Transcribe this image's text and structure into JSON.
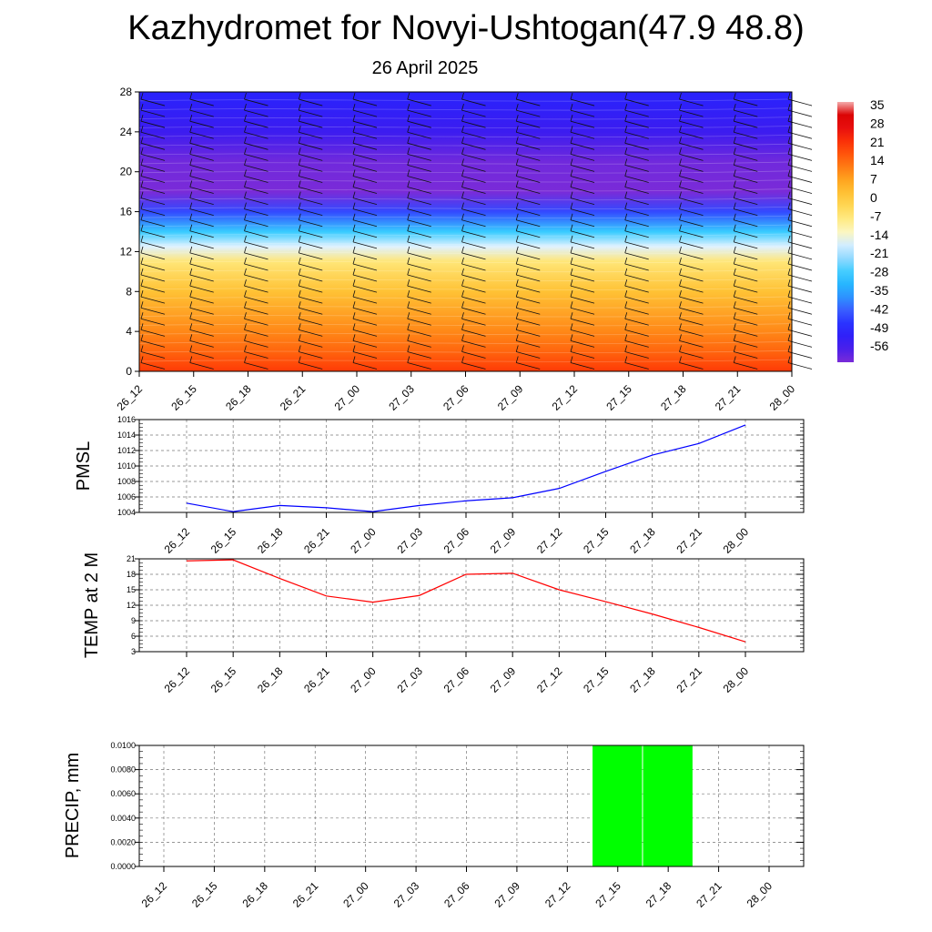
{
  "title": "Kazhydromet for Novyi-Ushtogan(47.9 48.8)",
  "subtitle": "26 April 2025",
  "time_labels": [
    "26_12",
    "26_15",
    "26_18",
    "26_21",
    "27_00",
    "27_03",
    "27_06",
    "27_09",
    "27_12",
    "27_15",
    "27_18",
    "27_21",
    "28_00"
  ],
  "colorbar_labels": [
    "35",
    "28",
    "21",
    "14",
    "7",
    "0",
    "-7",
    "-14",
    "-21",
    "-28",
    "-35",
    "-42",
    "-49",
    "-56"
  ],
  "chart_data": [
    {
      "type": "heatmap",
      "title": "",
      "xlabel": "",
      "ylabel": "",
      "y_ticks": [
        0,
        4,
        8,
        12,
        16,
        20,
        24,
        28
      ],
      "ylim": [
        0,
        28
      ],
      "categories": [
        "26_12",
        "26_15",
        "26_18",
        "26_21",
        "27_00",
        "27_03",
        "27_06",
        "27_09",
        "27_12",
        "27_15",
        "27_18",
        "27_21",
        "28_00"
      ],
      "color_scale": {
        "min": -56,
        "max": 35,
        "labels": [
          35,
          28,
          21,
          14,
          7,
          0,
          -7,
          -14,
          -21,
          -28,
          -35,
          -42,
          -49,
          -56
        ]
      },
      "profile": [
        {
          "level": 0,
          "value": 20
        },
        {
          "level": 2,
          "value": 15
        },
        {
          "level": 4,
          "value": 11
        },
        {
          "level": 8,
          "value": 3
        },
        {
          "level": 11,
          "value": -5
        },
        {
          "level": 12.5,
          "value": -14
        },
        {
          "level": 14,
          "value": -25
        },
        {
          "level": 16,
          "value": -40
        },
        {
          "level": 18,
          "value": -58
        },
        {
          "level": 21,
          "value": -55
        },
        {
          "level": 24,
          "value": -50
        },
        {
          "level": 28,
          "value": -45
        }
      ],
      "grid": false,
      "has_wind_barbs": true
    },
    {
      "type": "line",
      "ylabel": "PMSL",
      "ylim": [
        1004,
        1016
      ],
      "y_ticks": [
        1004,
        1006,
        1008,
        1010,
        1012,
        1014,
        1016
      ],
      "categories": [
        "26_12",
        "26_15",
        "26_18",
        "26_21",
        "27_00",
        "27_03",
        "27_06",
        "27_09",
        "27_12",
        "27_15",
        "27_18",
        "27_21",
        "28_00"
      ],
      "series": [
        {
          "values": [
            1005.2,
            1004.1,
            1004.9,
            1004.6,
            1004.1,
            1004.9,
            1005.5,
            1005.9,
            1007.1,
            1009.3,
            1011.4,
            1012.9,
            1015.3
          ]
        }
      ],
      "color": "#0000ff",
      "grid": true
    },
    {
      "type": "line",
      "ylabel": "TEMP at 2 M",
      "ylim": [
        3,
        21
      ],
      "y_ticks": [
        3,
        6,
        9,
        12,
        15,
        18,
        21
      ],
      "categories": [
        "26_12",
        "26_15",
        "26_18",
        "26_21",
        "27_00",
        "27_03",
        "27_06",
        "27_09",
        "27_12",
        "27_15",
        "27_18",
        "27_21",
        "28_00"
      ],
      "series": [
        {
          "values": [
            20.6,
            20.8,
            17.2,
            13.8,
            12.6,
            13.9,
            18.0,
            18.2,
            15.0,
            12.7,
            10.3,
            7.7,
            4.9
          ]
        }
      ],
      "color": "#ff0000",
      "grid": true
    },
    {
      "type": "bar",
      "ylabel": "PRECIP, mm",
      "ylim": [
        0,
        0.01
      ],
      "y_ticks": [
        "0.0000",
        "0.0020",
        "0.0040",
        "0.0060",
        "0.0080",
        "0.0100"
      ],
      "categories": [
        "26_12",
        "26_15",
        "26_18",
        "26_21",
        "27_00",
        "27_03",
        "27_06",
        "27_09",
        "27_12",
        "27_15",
        "27_18",
        "27_21",
        "28_00"
      ],
      "values": [
        0,
        0,
        0,
        0,
        0,
        0,
        0,
        0,
        0,
        0.01,
        0.01,
        0,
        0
      ],
      "color": "#00ff00",
      "grid": true
    }
  ]
}
